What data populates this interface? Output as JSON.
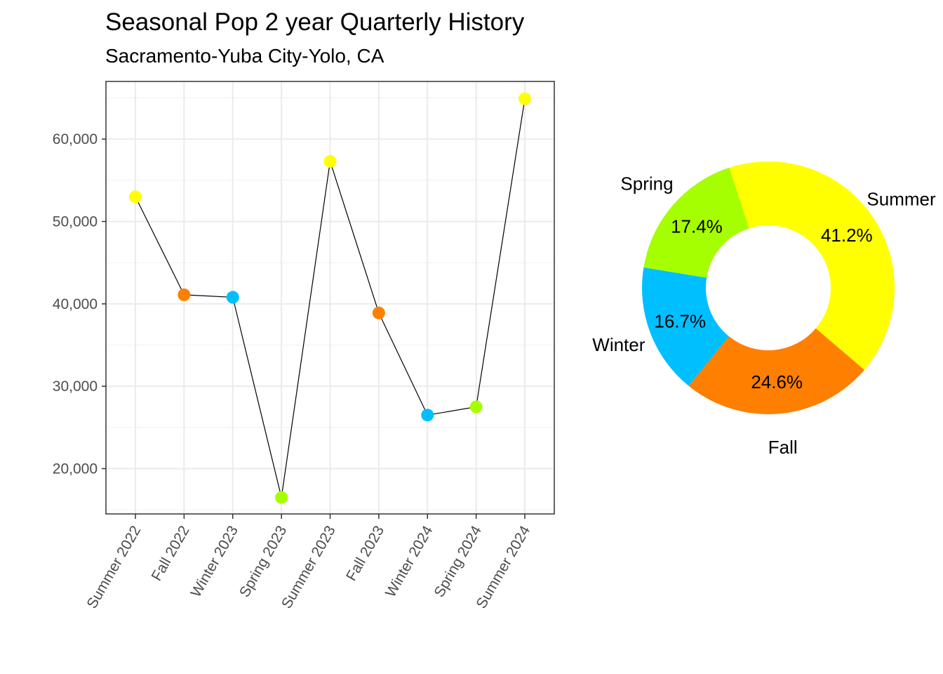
{
  "title": "Seasonal Pop 2 year Quarterly History",
  "subtitle": "Sacramento-Yuba City-Yolo, CA",
  "chart_data": [
    {
      "type": "line",
      "categories": [
        "Summer 2022",
        "Fall 2022",
        "Winter 2023",
        "Spring 2023",
        "Summer 2023",
        "Fall 2023",
        "Winter 2024",
        "Spring 2024",
        "Summer 2024"
      ],
      "values": [
        53000,
        41100,
        40800,
        16500,
        57300,
        38900,
        26500,
        27500,
        64900
      ],
      "seasons": [
        "Summer",
        "Fall",
        "Winter",
        "Spring",
        "Summer",
        "Fall",
        "Winter",
        "Spring",
        "Summer"
      ],
      "ylim": [
        14500,
        67000
      ],
      "yticks": [
        20000,
        30000,
        40000,
        50000,
        60000
      ],
      "ytick_labels": [
        "20,000",
        "30,000",
        "40,000",
        "50,000",
        "60,000"
      ],
      "xlabel": "",
      "ylabel": "",
      "grid": true,
      "line_color": "#000000"
    },
    {
      "type": "pie",
      "donut": true,
      "labels": [
        "Summer",
        "Fall",
        "Winter",
        "Spring"
      ],
      "values": [
        41.2,
        24.6,
        16.7,
        17.4
      ],
      "value_labels": [
        "41.2%",
        "24.6%",
        "16.7%",
        "17.4%"
      ]
    }
  ],
  "season_colors": {
    "Summer": "#FFFF00",
    "Fall": "#FF7F00",
    "Winter": "#00BFFF",
    "Spring": "#A6FF00"
  }
}
